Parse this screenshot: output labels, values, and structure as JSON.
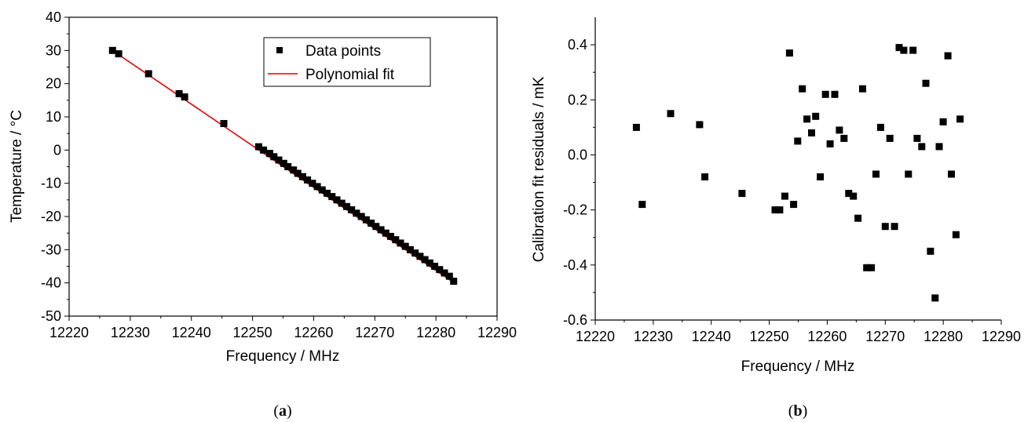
{
  "panels": [
    {
      "caption_prefix": "(",
      "caption_letter": "a",
      "caption_suffix": ")"
    },
    {
      "caption_prefix": "(",
      "caption_letter": "b",
      "caption_suffix": ")"
    }
  ],
  "chart_data": [
    {
      "type": "scatter",
      "xlabel": "Frequency / MHz",
      "ylabel": "Temperature / °C",
      "xlim": [
        12220,
        12290
      ],
      "ylim": [
        -50,
        40
      ],
      "xticks": [
        12220,
        12230,
        12240,
        12250,
        12260,
        12270,
        12280,
        12290
      ],
      "yticks": [
        -50,
        -40,
        -30,
        -20,
        -10,
        0,
        10,
        20,
        30,
        40
      ],
      "legend_position": "top-right",
      "series": [
        {
          "name": "Data points",
          "marker": "square",
          "color": "#000000",
          "x": [
            12227.1,
            12228.1,
            12233.0,
            12238.0,
            12238.9,
            12245.3,
            12251.0,
            12251.8,
            12252.8,
            12253.5,
            12254.3,
            12255.1,
            12255.8,
            12256.7,
            12257.4,
            12258.2,
            12259.0,
            12259.8,
            12260.6,
            12261.4,
            12262.2,
            12263.0,
            12263.8,
            12264.6,
            12265.4,
            12266.2,
            12267.0,
            12267.8,
            12268.6,
            12269.4,
            12270.2,
            12271.0,
            12271.8,
            12272.6,
            12273.4,
            12274.2,
            12275.0,
            12275.8,
            12276.6,
            12277.4,
            12278.2,
            12279.0,
            12279.8,
            12280.6,
            12281.4,
            12282.2,
            12282.9
          ],
          "y": [
            30,
            29,
            23,
            17,
            16,
            8,
            1,
            0,
            -1,
            -2,
            -3,
            -4,
            -5,
            -6,
            -7,
            -8,
            -9,
            -10,
            -11,
            -12,
            -13,
            -14,
            -15,
            -16,
            -17,
            -18,
            -19,
            -20,
            -21,
            -22,
            -23,
            -24,
            -25,
            -26,
            -27,
            -28,
            -29,
            -30,
            -31,
            -32,
            -33,
            -34,
            -35,
            -36,
            -37,
            -38,
            -39.5
          ]
        },
        {
          "name": "Polynomial fit",
          "type": "line",
          "color": "#e00000",
          "x": [
            12227.0,
            12283.0
          ],
          "y": [
            30.1,
            -40.0
          ]
        }
      ]
    },
    {
      "type": "scatter",
      "xlabel": "Frequency / MHz",
      "ylabel": "Calibration fit residuals / mK",
      "xlim": [
        12220,
        12290
      ],
      "ylim": [
        -0.6,
        0.5
      ],
      "xticks": [
        12220,
        12230,
        12240,
        12250,
        12260,
        12270,
        12280,
        12290
      ],
      "yticks": [
        -0.6,
        -0.4,
        -0.2,
        0.0,
        0.2,
        0.4
      ],
      "ytick_labels": [
        "-0.6",
        "-0.4",
        "-0.2",
        "0.0",
        "0.2",
        "0.4"
      ],
      "series": [
        {
          "marker": "square",
          "color": "#000000",
          "x": [
            12227.1,
            12228.1,
            12233.0,
            12238.0,
            12238.9,
            12245.3,
            12251.0,
            12251.8,
            12252.7,
            12253.5,
            12254.2,
            12254.9,
            12255.7,
            12256.5,
            12257.3,
            12258.0,
            12258.8,
            12259.7,
            12260.5,
            12261.3,
            12262.1,
            12262.9,
            12263.7,
            12264.5,
            12265.3,
            12266.1,
            12266.8,
            12267.6,
            12268.4,
            12269.2,
            12270.0,
            12270.8,
            12271.6,
            12272.4,
            12273.2,
            12274.0,
            12274.8,
            12275.5,
            12276.3,
            12277.0,
            12277.8,
            12278.6,
            12279.3,
            12280.0,
            12280.8,
            12281.4,
            12282.2,
            12282.9
          ],
          "y": [
            0.1,
            -0.18,
            0.15,
            0.11,
            -0.08,
            -0.14,
            -0.2,
            -0.2,
            -0.15,
            0.37,
            -0.18,
            0.05,
            0.24,
            0.13,
            0.08,
            0.14,
            -0.08,
            0.22,
            0.04,
            0.22,
            0.09,
            0.06,
            -0.14,
            -0.15,
            -0.23,
            0.24,
            -0.41,
            -0.41,
            -0.07,
            0.1,
            -0.26,
            0.06,
            -0.26,
            0.39,
            0.38,
            -0.07,
            0.38,
            0.06,
            0.03,
            0.26,
            -0.35,
            -0.52,
            0.03,
            0.12,
            0.36,
            -0.07,
            -0.29,
            0.13
          ]
        }
      ]
    }
  ]
}
